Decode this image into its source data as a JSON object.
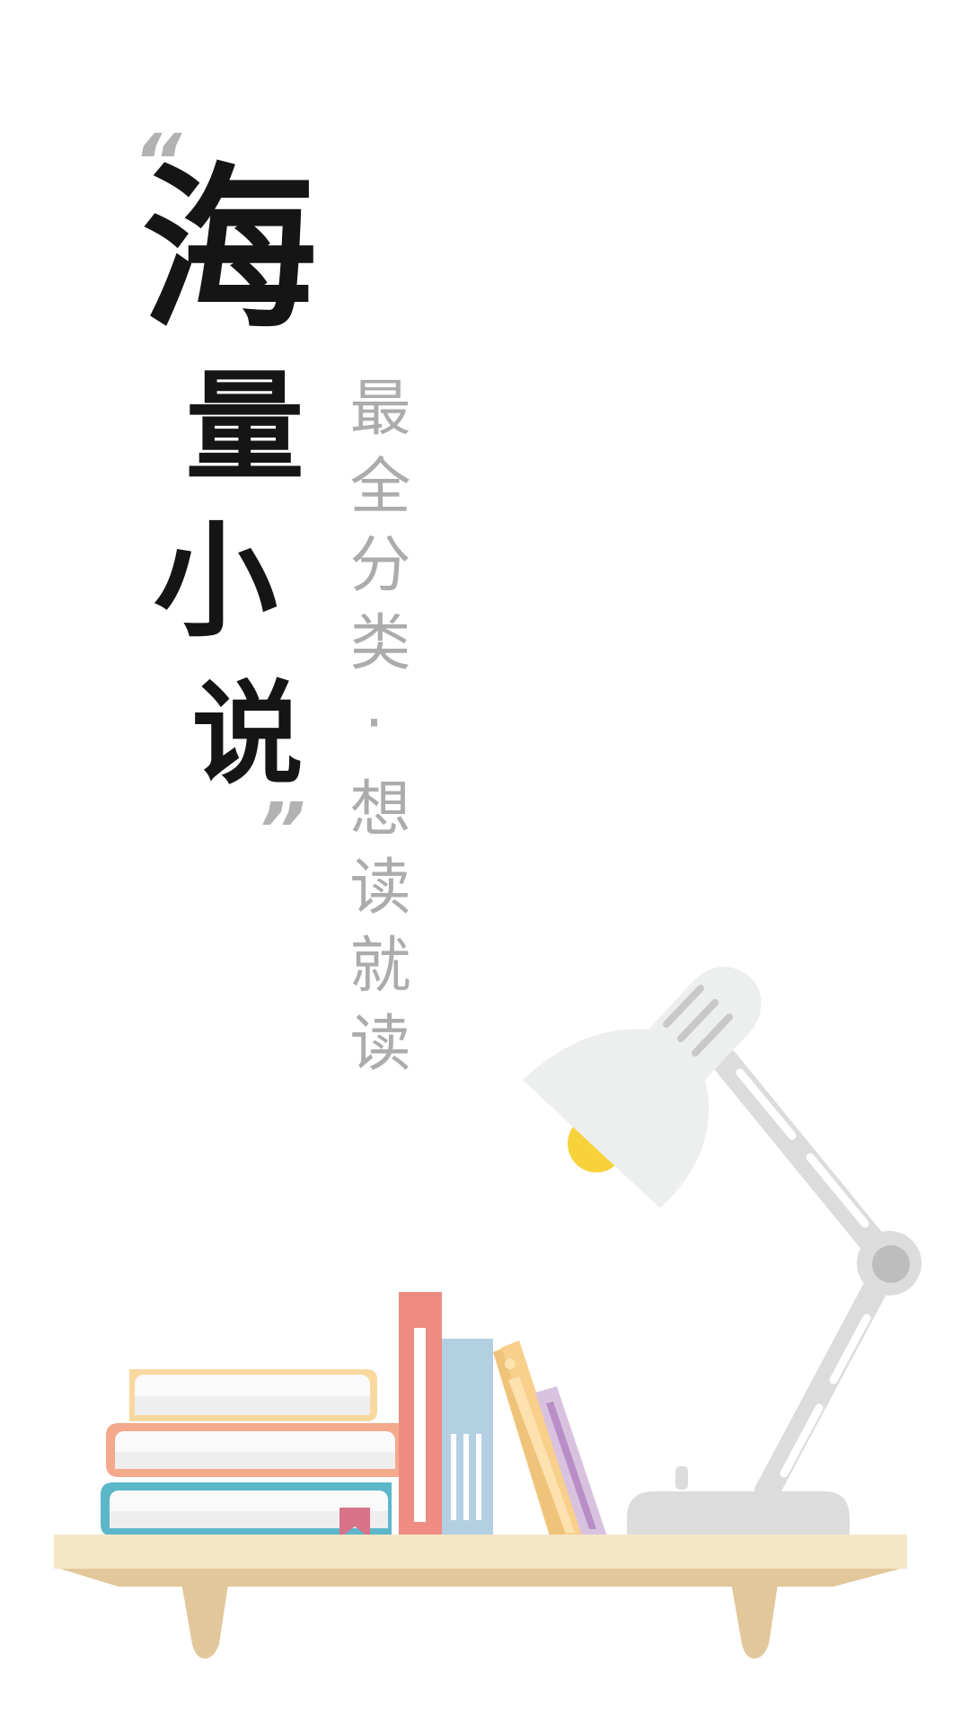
{
  "splash": {
    "quote_open": "“",
    "quote_close": "”",
    "title_chars": [
      "海",
      "量",
      "小",
      "说"
    ],
    "slogan": "最全分类·想读就读"
  },
  "illustration": {
    "icons": [
      "bookshelf-icon",
      "book-stack-icon",
      "upright-books-icon",
      "desk-lamp-icon"
    ],
    "colors": {
      "shelf": "#f6e6c8",
      "shelf_shadow": "#e2c79a",
      "book_red": "#ef8c82",
      "book_blue": "#b3d0e3",
      "book_orange": "#f8c67f",
      "book_purple": "#d9c2e0",
      "stack_top": "#f9d8a0",
      "stack_mid": "#f4a98d",
      "stack_bottom": "#5cb7c9",
      "lamp": "#dcdcdc",
      "lamp_shade": "#ecefee",
      "bulb": "#f8d23a"
    }
  }
}
